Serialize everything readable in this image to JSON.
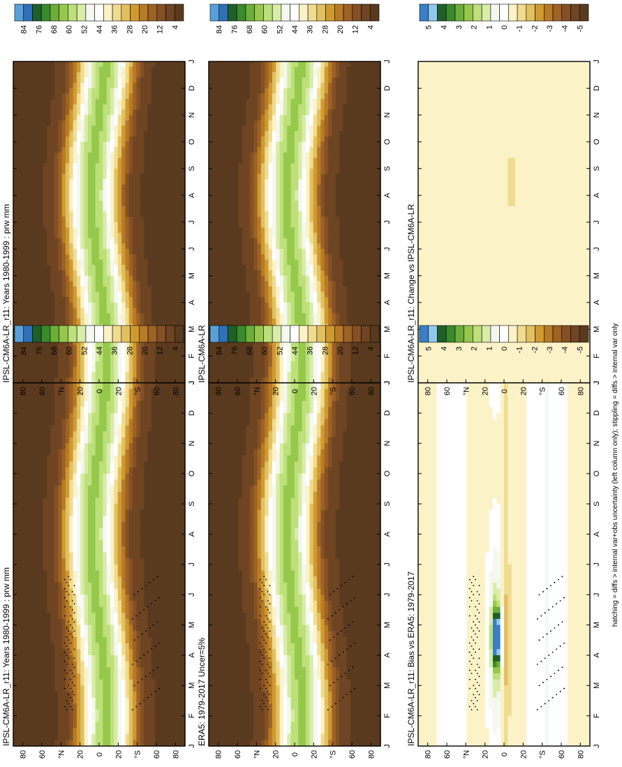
{
  "chart_data": [
    {
      "type": "heatmap",
      "title": "IPSL-CM6A-LR_r11: Years 1980-1999 : prw mm",
      "x": [
        "J",
        "F",
        "M",
        "A",
        "M",
        "J",
        "J",
        "A",
        "S",
        "O",
        "N",
        "D",
        "J"
      ],
      "y": [
        "80",
        "60",
        "°N",
        "20",
        "0",
        "20",
        "°S",
        "60",
        "80"
      ],
      "colorbar": [
        "84",
        "76",
        "68",
        "60",
        "52",
        "44",
        "36",
        "28",
        "20",
        "12",
        "4"
      ],
      "field": "prw",
      "significance": "hatching + stippling"
    },
    {
      "type": "heatmap",
      "title": "IPSL-CM6A-LR_r11: Years 1980-1999 : prw mm",
      "x": [
        "J",
        "F",
        "M",
        "A",
        "M",
        "J",
        "J",
        "A",
        "S",
        "O",
        "N",
        "D",
        "J"
      ],
      "y": [
        "80",
        "60",
        "°N",
        "20",
        "0",
        "20",
        "°S",
        "60",
        "80"
      ],
      "colorbar": [
        "84",
        "76",
        "68",
        "60",
        "52",
        "44",
        "36",
        "28",
        "20",
        "12",
        "4"
      ],
      "field": "prw"
    },
    {
      "type": "heatmap",
      "title": "ERA5: 1979-2017 Uncer=5%",
      "x": [
        "J",
        "F",
        "M",
        "A",
        "M",
        "J",
        "J",
        "A",
        "S",
        "O",
        "N",
        "D",
        "J"
      ],
      "y": [
        "80",
        "60",
        "°N",
        "20",
        "0",
        "20",
        "°S",
        "60",
        "80"
      ],
      "colorbar": [
        "84",
        "76",
        "68",
        "60",
        "52",
        "44",
        "36",
        "28",
        "20",
        "12",
        "4"
      ],
      "field": "prw",
      "significance": "hatching + stippling"
    },
    {
      "type": "heatmap",
      "title": "IPSL-CM6A-LR",
      "x": [
        "J",
        "F",
        "M",
        "A",
        "M",
        "J",
        "J",
        "A",
        "S",
        "O",
        "N",
        "D",
        "J"
      ],
      "y": [
        "80",
        "60",
        "°N",
        "20",
        "0",
        "20",
        "°S",
        "60",
        "80"
      ],
      "colorbar": [
        "84",
        "76",
        "68",
        "60",
        "52",
        "44",
        "36",
        "28",
        "20",
        "12",
        "4"
      ],
      "field": "prw"
    },
    {
      "type": "heatmap",
      "title": "IPSL-CM6A-LR_r11: Bias vs ERA5: 1979-2017",
      "x": [
        "J",
        "F",
        "M",
        "A",
        "M",
        "J",
        "J",
        "A",
        "S",
        "O",
        "N",
        "D",
        "J"
      ],
      "y": [
        "80",
        "60",
        "°N",
        "20",
        "0",
        "20",
        "°S",
        "60",
        "80"
      ],
      "colorbar": [
        "5",
        "4",
        "3",
        "2",
        "1",
        "0",
        "-1",
        "-2",
        "-3",
        "-4",
        "-5"
      ],
      "field": "diff",
      "significance": "hatching + stippling"
    },
    {
      "type": "heatmap",
      "title": "IPSL-CM6A-LR_r11: Change vs IPSL-CM6A-LR",
      "x": [
        "J",
        "F",
        "M",
        "A",
        "M",
        "J",
        "J",
        "A",
        "S",
        "O",
        "N",
        "D",
        "J"
      ],
      "y": [
        "80",
        "60",
        "°N",
        "20",
        "0",
        "20",
        "°S",
        "60",
        "80"
      ],
      "colorbar": [
        "5",
        "4",
        "3",
        "2",
        "1",
        "0",
        "-1",
        "-2",
        "-3",
        "-4",
        "-5"
      ],
      "field": "change"
    }
  ],
  "footnote": "hatching = diffs > internal var+obs uncertainty (left column only); stippling = diffs > internal var only",
  "colors": {
    "prw_scale": [
      "#5aa0d8",
      "#2f70b8",
      "#1f5f2a",
      "#3a8a2e",
      "#6cae3a",
      "#96c84c",
      "#bde07a",
      "#d9eca8",
      "#f4f8f0",
      "#ffffff",
      "#fbf2c8",
      "#f0dc90",
      "#e2c060",
      "#cf9a30",
      "#b87a24",
      "#9c6226",
      "#845024",
      "#6e4422",
      "#5a3a1e"
    ],
    "diff_scale": [
      "#3a7fc4",
      "#90c8ec",
      "#1f5f2a",
      "#3a8a2e",
      "#6cae3a",
      "#96c84c",
      "#bde07a",
      "#d9eca8",
      "#f4f8f0",
      "#ffffff",
      "#fbf2c8",
      "#f0dc90",
      "#e2c060",
      "#cf9a30",
      "#b87a24",
      "#9c6226",
      "#845024",
      "#6e4422",
      "#5a3a1e"
    ]
  }
}
